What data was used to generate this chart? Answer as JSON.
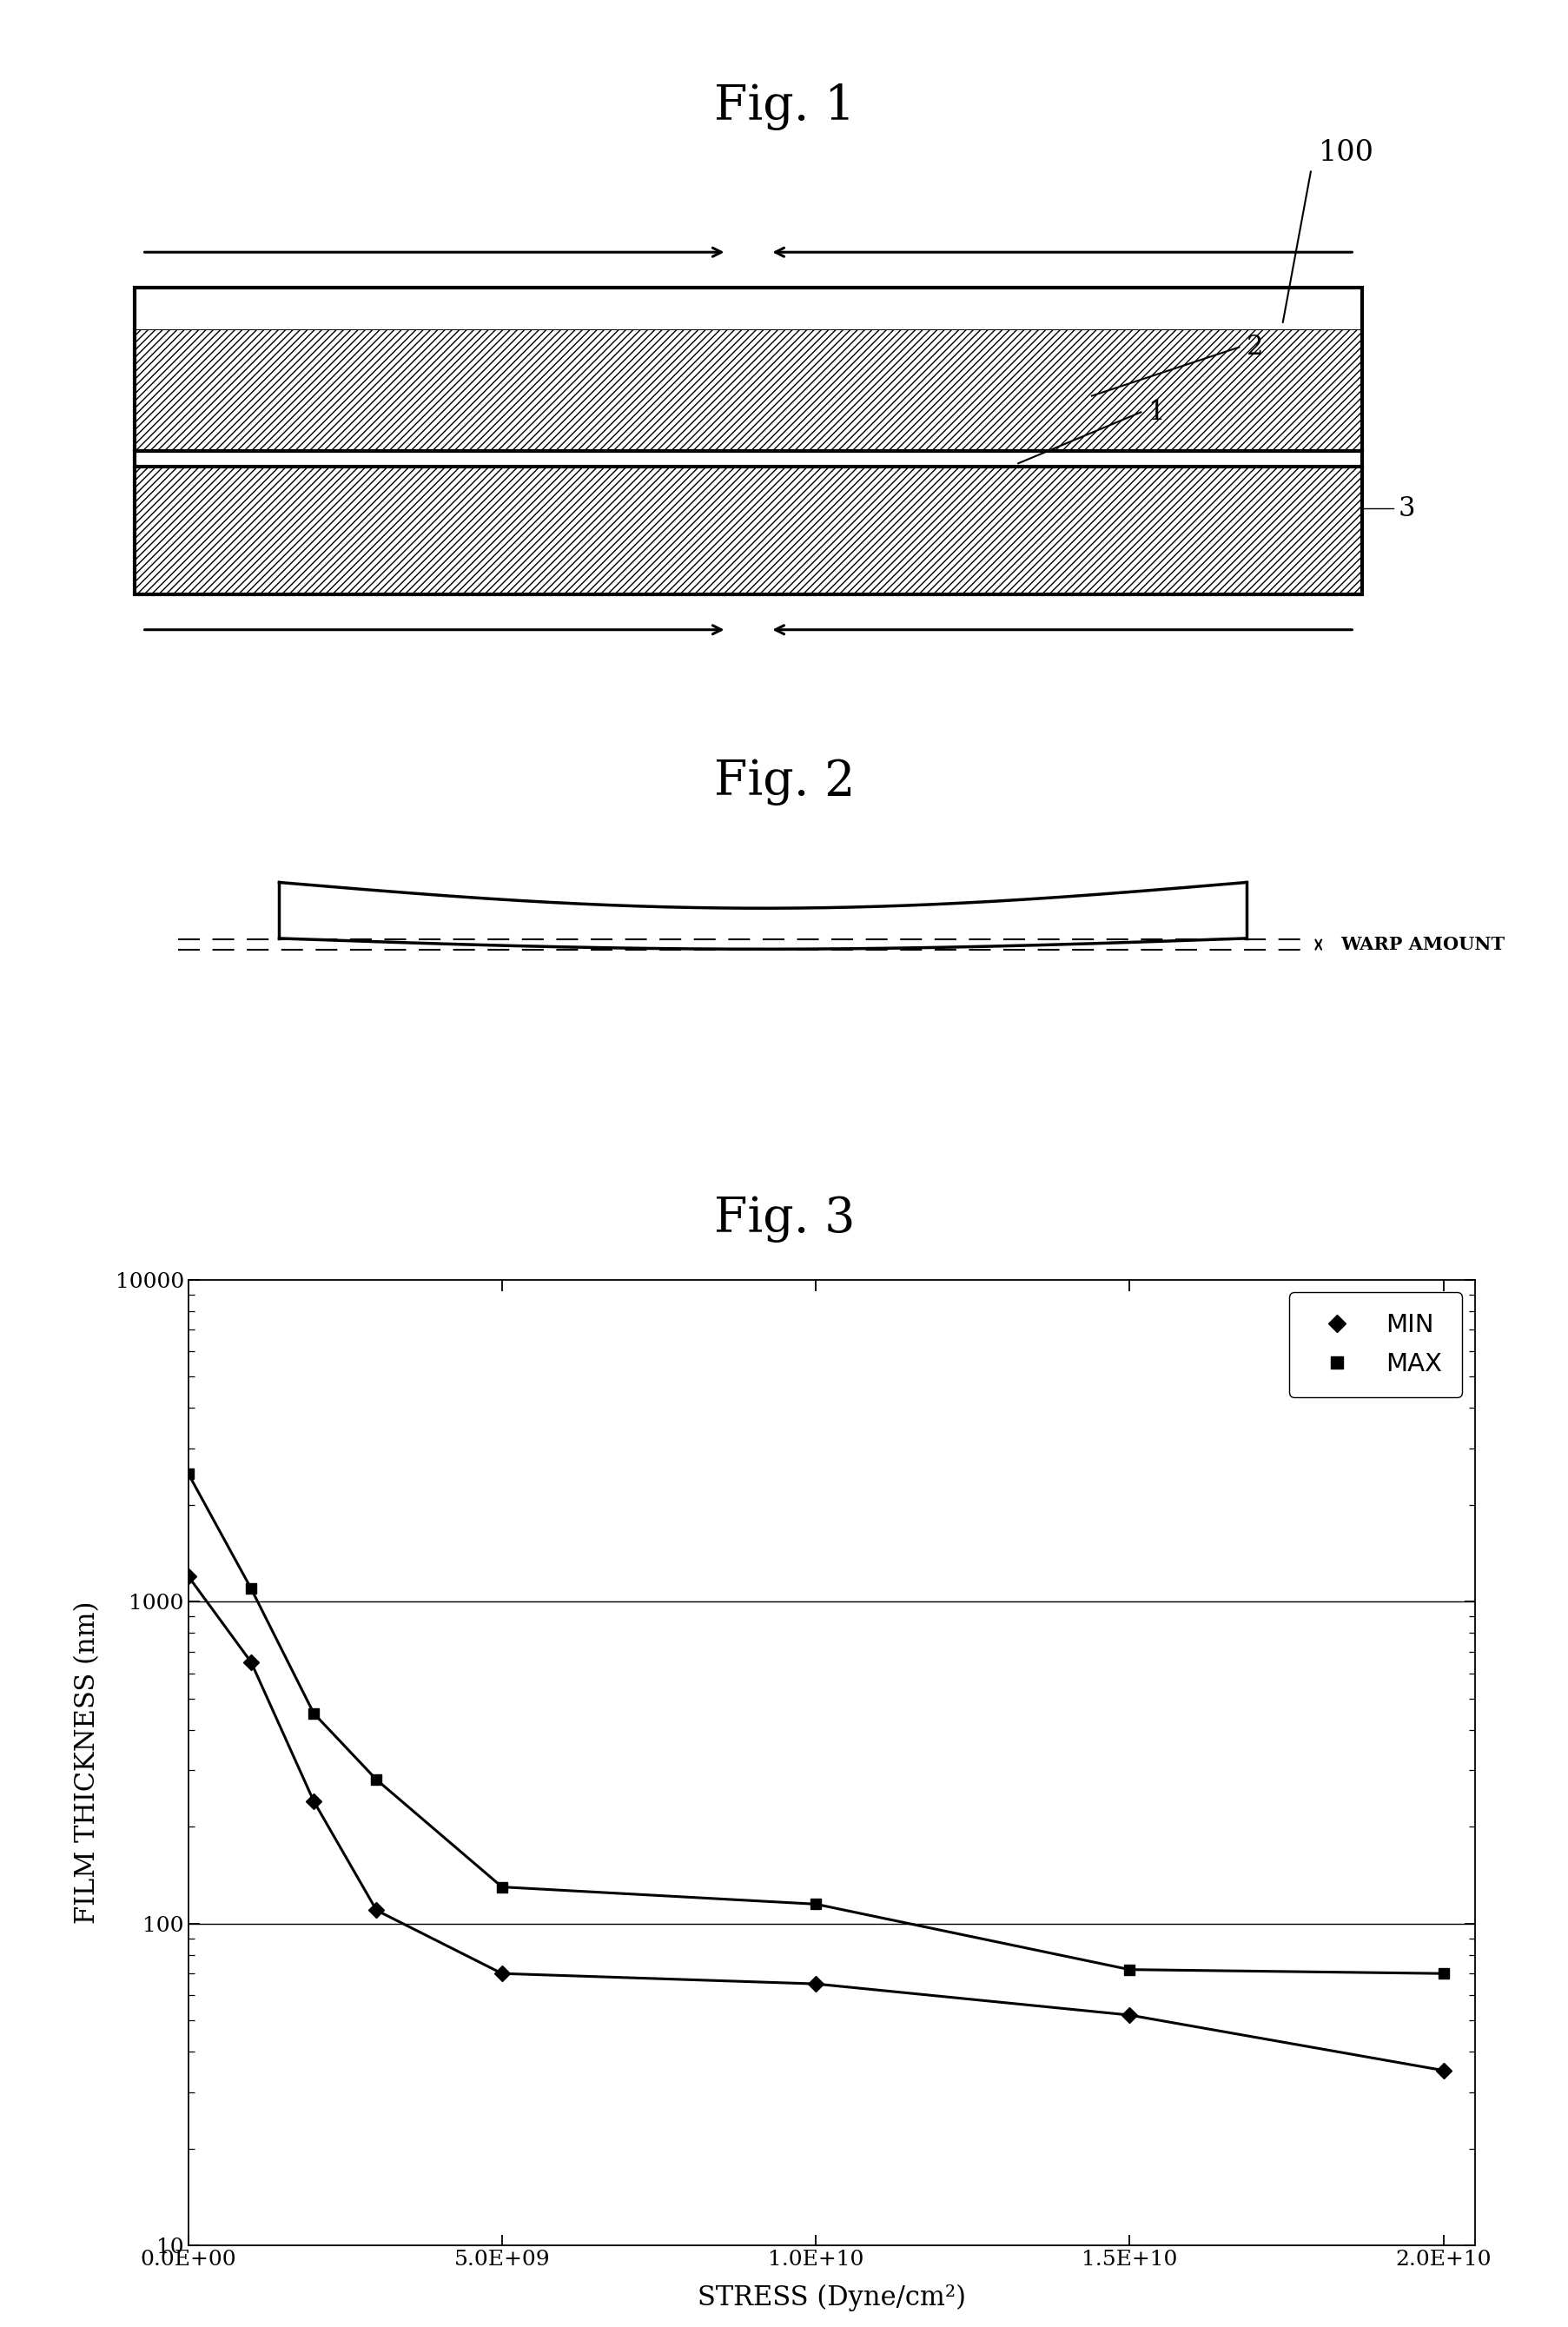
{
  "fig1_title": "Fig. 1",
  "fig2_title": "Fig. 2",
  "fig3_title": "Fig. 3",
  "fig3_xlabel": "STRESS (Dyne/cm²)",
  "fig3_ylabel": "FILM THICKNESS (nm)",
  "fig3_xlim": [
    0,
    20500000000.0
  ],
  "fig3_ylim_log": [
    10,
    10000
  ],
  "fig3_yticks": [
    10,
    100,
    1000,
    10000
  ],
  "fig3_xticks": [
    0.0,
    5000000000.0,
    10000000000.0,
    15000000000.0,
    20000000000.0
  ],
  "fig3_xtick_labels": [
    "0.0E+00",
    "5.0E+09",
    "1.0E+10",
    "1.5E+10",
    "2.0E+10"
  ],
  "fig3_hlines": [
    1000,
    100
  ],
  "fig3_min_x": [
    0.0,
    1000000000.0,
    2000000000.0,
    3000000000.0,
    5000000000.0,
    10000000000.0,
    15000000000.0,
    20000000000.0
  ],
  "fig3_min_y": [
    1200,
    650,
    240,
    110,
    70,
    65,
    52,
    35
  ],
  "fig3_max_x": [
    0.0,
    1000000000.0,
    2000000000.0,
    3000000000.0,
    5000000000.0,
    10000000000.0,
    15000000000.0,
    20000000000.0
  ],
  "fig3_max_y": [
    2500,
    1100,
    450,
    280,
    130,
    115,
    72,
    70
  ],
  "legend_min_label": "MIN",
  "legend_max_label": "MAX",
  "bg_color": "#ffffff"
}
